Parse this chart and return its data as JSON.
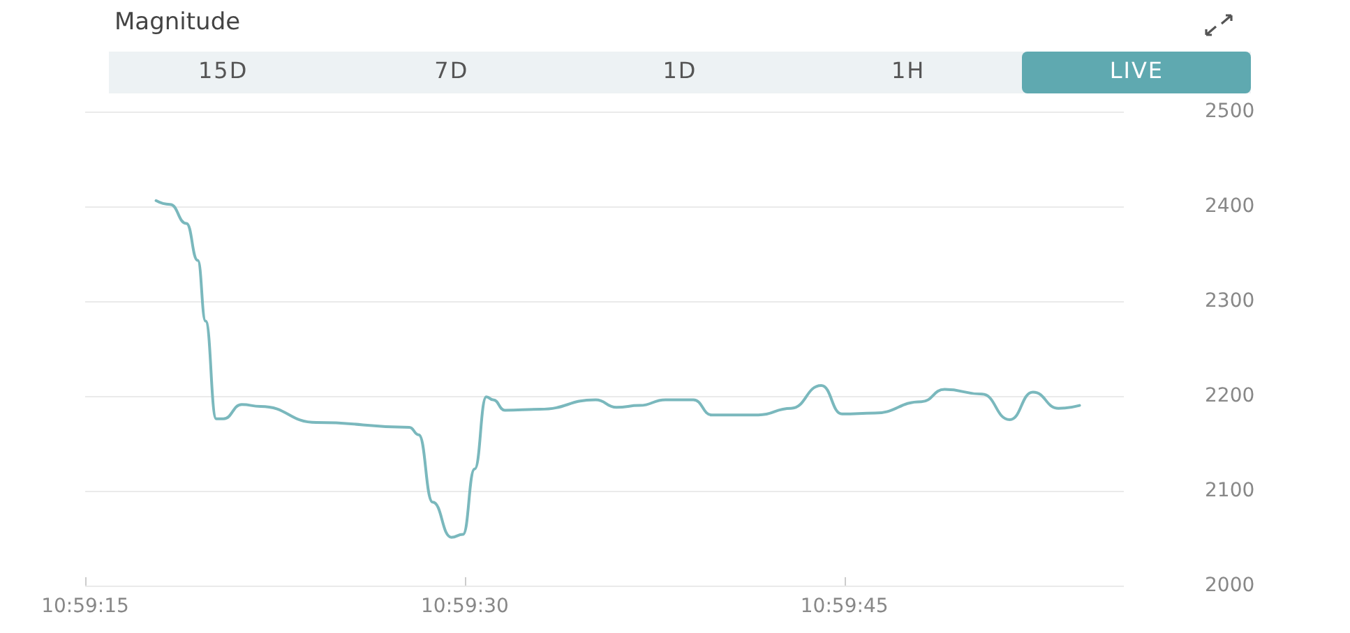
{
  "chart_data": {
    "type": "line",
    "title": "Magnitude",
    "annotations": [
      "15D",
      "7D",
      "1D",
      "1H",
      "LIVE"
    ],
    "x": [
      10.988278,
      10.988431,
      10.988611,
      10.988736,
      10.988822,
      10.988939,
      10.989017,
      10.989219,
      10.989425,
      10.990039,
      10.991058,
      10.991161,
      10.991314,
      10.991519,
      10.991647,
      10.991775,
      10.991903,
      10.991978,
      10.992106,
      10.992489,
      10.993103,
      10.993331,
      10.993586,
      10.993869,
      10.994175,
      10.994378,
      10.994431,
      10.994889,
      10.995247,
      10.995578,
      10.995808,
      10.996167,
      10.996678,
      10.996933,
      10.997342,
      10.997647,
      10.997903,
      10.998183,
      10.998414
    ],
    "series": [
      {
        "color": "#7ab8bd",
        "values": [
          2406,
          2402,
          2382,
          2343,
          2279,
          2176,
          2176,
          2191,
          2189,
          2172,
          2167,
          2159,
          2088,
          2051,
          2054,
          2123,
          2199,
          2196,
          2185,
          2186,
          2196,
          2188,
          2190,
          2196,
          2196,
          2180,
          2180,
          2180,
          2187,
          2211,
          2181,
          2182,
          2194,
          2207,
          2202,
          2175,
          2204,
          2187,
          2190
        ]
      }
    ],
    "xlim": [
      10.9875,
      10.9989
    ],
    "xticks": [
      {
        "value": 10.9875,
        "label": "10:59:15"
      },
      {
        "value": 10.991667,
        "label": "10:59:30"
      },
      {
        "value": 10.995833,
        "label": "10:59:45"
      }
    ],
    "ylim": [
      2000,
      2500
    ],
    "yticks": [
      2000,
      2100,
      2200,
      2300,
      2400,
      2500
    ],
    "grid": "y",
    "marker": "none",
    "line_style": "solid"
  }
}
